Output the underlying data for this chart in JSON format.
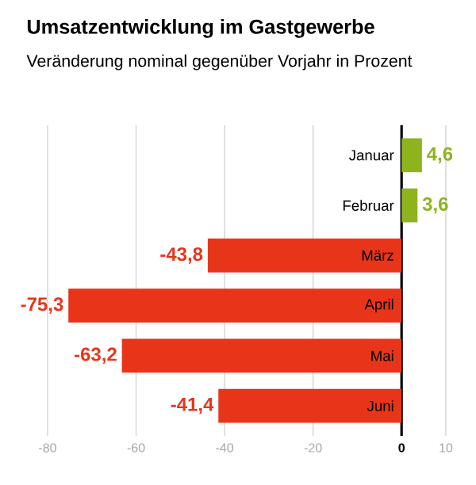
{
  "chart_data": {
    "type": "bar",
    "orientation": "horizontal",
    "title": "Umsatzentwicklung im Gastgewerbe",
    "subtitle": "Veränderung nominal gegenüber Vorjahr in Prozent",
    "categories": [
      "Januar",
      "Februar",
      "März",
      "April",
      "Mai",
      "Juni"
    ],
    "values": [
      4.6,
      3.6,
      -43.8,
      -75.3,
      -63.2,
      -41.4
    ],
    "colors": [
      "#8db31f",
      "#8db31f",
      "#e8351a",
      "#e8351a",
      "#e8351a",
      "#e8351a"
    ],
    "value_labels": [
      "4,6",
      "3,6",
      "-43,8",
      "-75,3",
      "-63,2",
      "-41,4"
    ],
    "xlim": [
      -80,
      10
    ],
    "xticks": [
      -80,
      -60,
      -40,
      -20,
      0,
      10
    ],
    "grid": "x"
  }
}
